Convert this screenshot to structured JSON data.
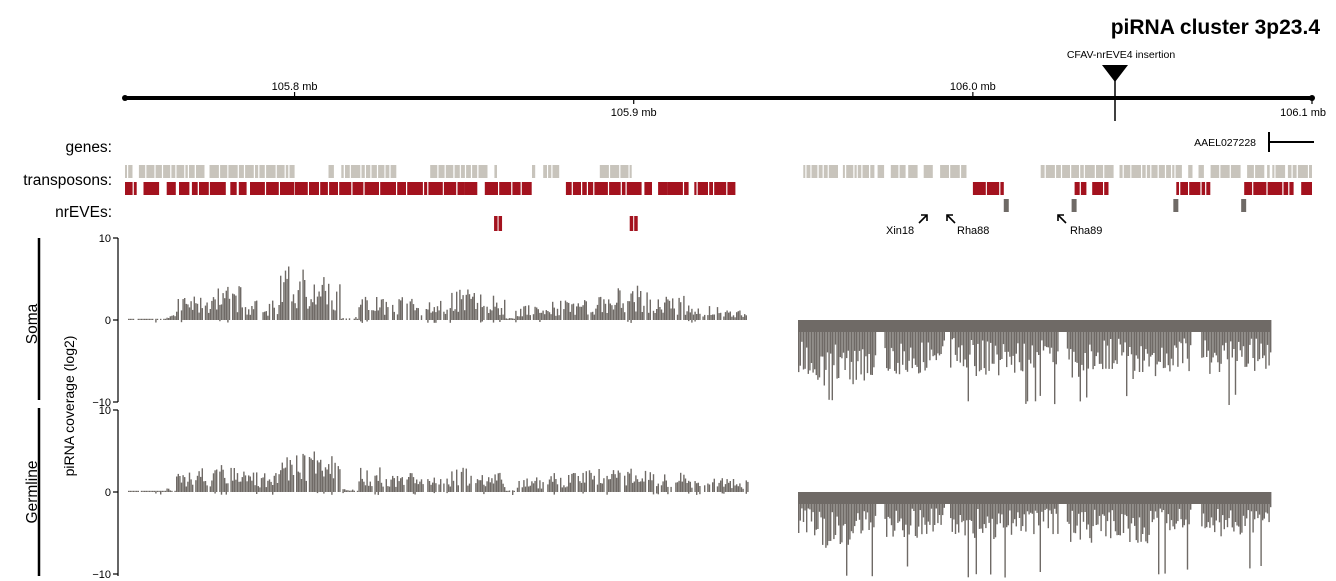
{
  "title": "piRNA cluster 3p23.4",
  "colors": {
    "gene": "#c8c4bc",
    "transposon": "#a3121e",
    "coverage": "#6f6a66",
    "nrEVE_grey": "#6f6a66",
    "nrEVE_red": "#a3121e"
  },
  "track_labels": {
    "genes": "genes:",
    "transposons": "transposons:",
    "nrEVEs": "nrEVEs:"
  },
  "insertion_label": "CFAV-nrEVE4 insertion",
  "gene_name": "AAEL027228",
  "nrEVE_labels": [
    "Xin18",
    "Rha88",
    "Rha89"
  ],
  "panel_labels": [
    "Soma",
    "Germline"
  ],
  "chart_data": {
    "type": "bar",
    "ylabel": "piRNA coverage (log2)",
    "ylim": [
      -10,
      10
    ],
    "yticks": [
      10,
      0,
      -10
    ],
    "yticks_display": [
      "10",
      "0",
      "−10"
    ],
    "genome_axis": {
      "range_mb": [
        105.75,
        106.1
      ],
      "ticks_upper": [
        {
          "pos": 105.8,
          "label": "105.8 mb"
        },
        {
          "pos": 106.0,
          "label": "106.0 mb"
        }
      ],
      "ticks_lower": [
        {
          "pos": 105.9,
          "label": "105.9 mb"
        },
        {
          "pos": 106.1,
          "label": "106.1 mb"
        }
      ],
      "insertion_mb": 106.05
    },
    "gene_mb": [
      106.08,
      106.1
    ],
    "transposons_light_mb": [
      [
        105.75,
        105.8
      ],
      [
        105.81,
        105.83
      ],
      [
        105.84,
        105.86
      ],
      [
        105.87,
        105.88
      ],
      [
        105.89,
        105.9
      ],
      [
        105.95,
        106.0
      ],
      [
        106.02,
        106.1
      ]
    ],
    "transposons_dark_mb": [
      [
        105.75,
        105.8
      ],
      [
        105.8,
        105.85
      ],
      [
        105.85,
        105.87
      ],
      [
        105.88,
        105.91
      ],
      [
        105.91,
        105.93
      ],
      [
        106.0,
        106.01
      ],
      [
        106.03,
        106.04
      ],
      [
        106.06,
        106.07
      ],
      [
        106.08,
        106.1
      ]
    ],
    "nrEVEs_red_mb": [
      105.86,
      105.9
    ],
    "nrEVEs_grey_mb": [
      106.01,
      106.03,
      106.06,
      106.08
    ],
    "series": [
      {
        "name": "Soma",
        "positive": {
          "x_mb": [
            105.76,
            105.77,
            105.78,
            105.79,
            105.8,
            105.81,
            105.82,
            105.83,
            105.84,
            105.85,
            105.86,
            105.87,
            105.88,
            105.89,
            105.9,
            105.91,
            105.92,
            105.93,
            105.94
          ],
          "values": [
            0.5,
            2.5,
            3.5,
            2.0,
            5.5,
            4.5,
            3.0,
            2.5,
            2.0,
            3.5,
            2.5,
            1.5,
            2.0,
            2.5,
            3.5,
            2.5,
            1.5,
            1.0,
            0.5
          ]
        },
        "negative": {
          "x_mb": [
            105.95,
            105.96,
            105.97,
            105.98,
            105.99,
            106.0,
            106.01,
            106.02,
            106.03,
            106.04,
            106.05,
            106.06,
            106.07,
            106.08
          ],
          "values": [
            -6.5,
            -7.0,
            -6.5,
            -6.0,
            -5.5,
            -6.0,
            -6.0,
            -5.5,
            -6.5,
            -5.5,
            -6.5,
            -5.5,
            -6.0,
            -5.5
          ]
        }
      },
      {
        "name": "Germline",
        "positive": {
          "x_mb": [
            105.76,
            105.77,
            105.78,
            105.79,
            105.8,
            105.81,
            105.82,
            105.83,
            105.84,
            105.85,
            105.86,
            105.87,
            105.88,
            105.89,
            105.9,
            105.91,
            105.92,
            105.93,
            105.94
          ],
          "values": [
            0.5,
            2.5,
            3.0,
            2.0,
            4.0,
            4.5,
            2.5,
            2.0,
            1.5,
            2.5,
            2.0,
            1.5,
            2.0,
            2.5,
            2.5,
            2.0,
            1.5,
            1.5,
            1.5
          ]
        },
        "negative": {
          "x_mb": [
            105.95,
            105.96,
            105.97,
            105.98,
            105.99,
            106.0,
            106.01,
            106.02,
            106.03,
            106.04,
            106.05,
            106.06,
            106.07,
            106.08
          ],
          "values": [
            -5.0,
            -6.0,
            -5.5,
            -5.0,
            -4.5,
            -5.0,
            -5.0,
            -4.5,
            -5.5,
            -5.0,
            -5.5,
            -4.5,
            -5.0,
            -4.5
          ]
        }
      }
    ]
  }
}
